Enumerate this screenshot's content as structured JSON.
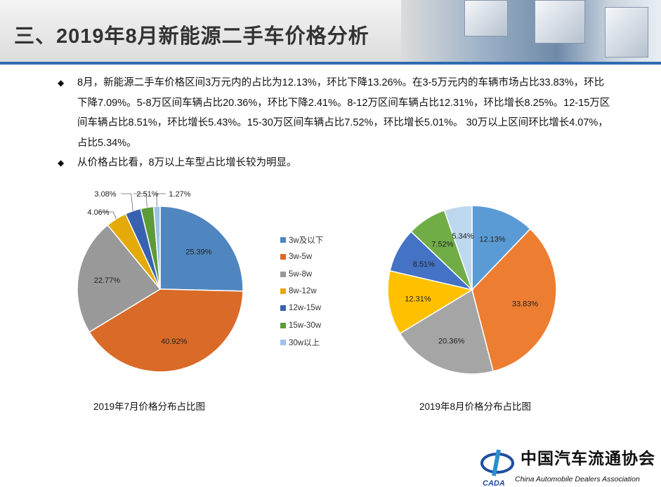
{
  "header": {
    "title": "三、2019年8月新能源二手车价格分析"
  },
  "bullets": [
    "8月，新能源二手车价格区间3万元内的占比为12.13%，环比下降13.26%。在3-5万元内的车辆市场占比33.83%，环比下降7.09%。5-8万区间车辆占比20.36%，环比下降2.41%。8-12万区间车辆占比12.31%，环比增长8.25%。12-15万区间车辆占比8.51%，环比增长5.43%。15-30万区间车辆占比7.52%，环比增长5.01%。 30万以上区间环比增长4.07%，占比5.34%。",
    "从价格占比看，8万以上车型占比增长较为明显。"
  ],
  "legend": {
    "items": [
      "3w及以下",
      "3w-5w",
      "5w-8w",
      "8w-12w",
      "12w-15w",
      "15w-30w",
      "30w以上"
    ]
  },
  "chart_data": [
    {
      "type": "pie",
      "title": "2019年7月价格分布占比图",
      "categories": [
        "3w及以下",
        "3w-5w",
        "5w-8w",
        "8w-12w",
        "12w-15w",
        "15w-30w",
        "30w以上"
      ],
      "values": [
        25.39,
        40.92,
        22.77,
        4.06,
        3.08,
        2.51,
        1.27
      ],
      "labels": [
        "25.39%",
        "40.92%",
        "22.77%",
        "4.06%",
        "3.08%",
        "2.51%",
        "1.27%"
      ],
      "colors": [
        "#4f86bf",
        "#d96a28",
        "#999999",
        "#e3aa0a",
        "#3862b0",
        "#5c9a3a",
        "#9fc2e6"
      ],
      "legend_placement": "right"
    },
    {
      "type": "pie",
      "title": "2019年8月价格分布占比图",
      "categories": [
        "3w及以下",
        "3w-5w",
        "5w-8w",
        "8w-12w",
        "12w-15w",
        "15w-30w",
        "30w以上"
      ],
      "values": [
        12.13,
        33.83,
        20.36,
        12.31,
        8.51,
        7.52,
        5.34
      ],
      "labels": [
        "12.13%",
        "33.83%",
        "20.36%",
        "12.31%",
        "8.51%",
        "7.52%",
        "5.34%"
      ],
      "colors": [
        "#5b9bd5",
        "#ed7d31",
        "#a5a5a5",
        "#ffc000",
        "#4472c4",
        "#70ad47",
        "#bdd7ee"
      ]
    }
  ],
  "logo": {
    "cn": "中国汽车流通协会",
    "en": "China Automobile Dealers Association",
    "abbr": "CADA"
  }
}
